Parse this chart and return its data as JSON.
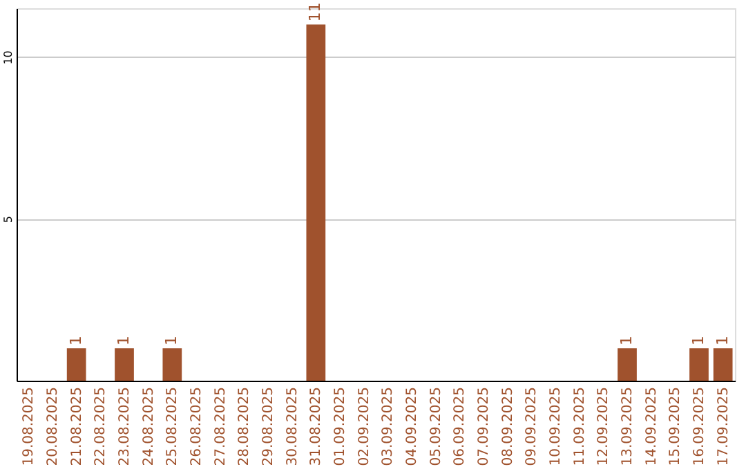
{
  "chart_data": {
    "type": "bar",
    "categories": [
      "19.08.2025",
      "20.08.2025",
      "21.08.2025",
      "22.08.2025",
      "23.08.2025",
      "24.08.2025",
      "25.08.2025",
      "26.08.2025",
      "27.08.2025",
      "28.08.2025",
      "29.08.2025",
      "30.08.2025",
      "31.08.2025",
      "01.09.2025",
      "02.09.2025",
      "03.09.2025",
      "04.09.2025",
      "05.09.2025",
      "06.09.2025",
      "07.09.2025",
      "08.09.2025",
      "09.09.2025",
      "10.09.2025",
      "11.09.2025",
      "12.09.2025",
      "13.09.2025",
      "14.09.2025",
      "15.09.2025",
      "16.09.2025",
      "17.09.2025"
    ],
    "values": [
      0,
      0,
      1,
      0,
      1,
      0,
      1,
      0,
      0,
      0,
      0,
      0,
      11,
      0,
      0,
      0,
      0,
      0,
      0,
      0,
      0,
      0,
      0,
      0,
      0,
      1,
      0,
      0,
      1,
      1
    ],
    "value_labels": [
      null,
      null,
      "1",
      null,
      "1",
      null,
      "1",
      null,
      null,
      null,
      null,
      null,
      "11",
      null,
      null,
      null,
      null,
      null,
      null,
      null,
      null,
      null,
      null,
      null,
      null,
      "1",
      null,
      null,
      "1",
      "1"
    ],
    "color": "#a0522d",
    "ylim": [
      0,
      11.5
    ],
    "yticks": [
      {
        "value": 0,
        "label": null
      },
      5,
      10
    ],
    "grid": "y"
  }
}
